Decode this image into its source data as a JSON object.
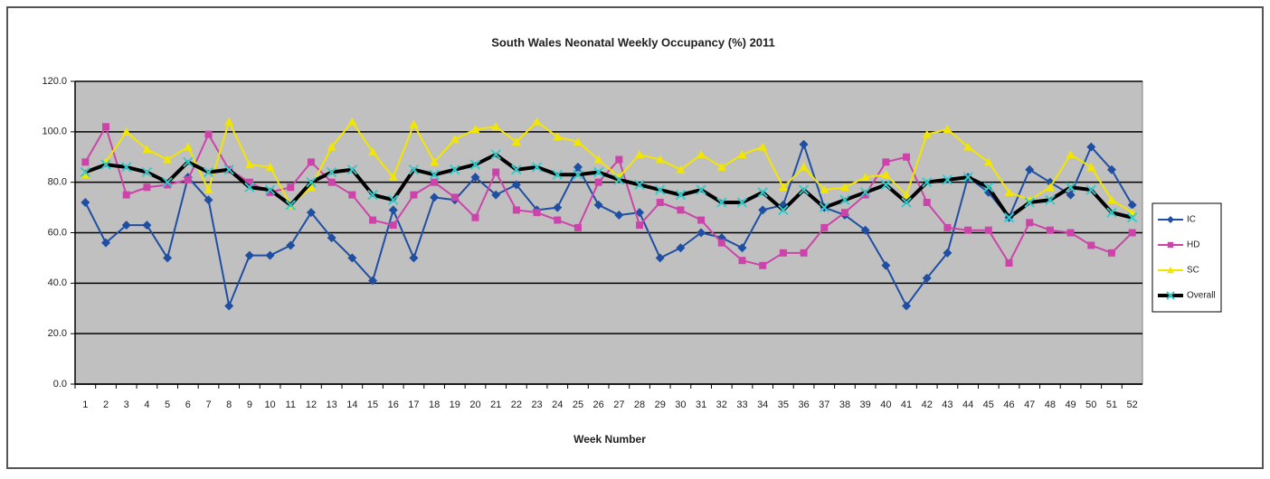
{
  "chart_data": {
    "type": "line",
    "title": "South Wales Neonatal Weekly Occupancy (%) 2011",
    "x_label": "Week Number",
    "categories": [
      "1",
      "2",
      "3",
      "4",
      "5",
      "6",
      "7",
      "8",
      "9",
      "10",
      "11",
      "12",
      "13",
      "14",
      "15",
      "16",
      "17",
      "18",
      "19",
      "20",
      "21",
      "22",
      "23",
      "24",
      "25",
      "26",
      "27",
      "28",
      "29",
      "30",
      "31",
      "32",
      "33",
      "34",
      "35",
      "36",
      "37",
      "38",
      "39",
      "40",
      "41",
      "42",
      "43",
      "44",
      "45",
      "46",
      "47",
      "48",
      "49",
      "50",
      "51",
      "52"
    ],
    "ylim": [
      0,
      120
    ],
    "yticks": [
      {
        "value": 0,
        "label": "0.0"
      },
      {
        "value": 20,
        "label": "20.0"
      },
      {
        "value": 40,
        "label": "40.0"
      },
      {
        "value": 60,
        "label": "60.0"
      },
      {
        "value": 80,
        "label": "80.0"
      },
      {
        "value": 100,
        "label": "100.0"
      },
      {
        "value": 120,
        "label": "120.0"
      }
    ],
    "grid": true,
    "legend": "right",
    "series": [
      {
        "name": "IC",
        "color": "#1f4fa3",
        "marker": "diamond",
        "marker_color": "#1f4fa3",
        "width": 2,
        "values": [
          72,
          56,
          63,
          63,
          50,
          82,
          73,
          31,
          51,
          51,
          55,
          68,
          58,
          50,
          41,
          69,
          50,
          74,
          73,
          82,
          75,
          79,
          69,
          70,
          86,
          71,
          67,
          68,
          50,
          54,
          60,
          58,
          54,
          69,
          71,
          95,
          70,
          67,
          61,
          47,
          31,
          42,
          52,
          82,
          76,
          66,
          85,
          80,
          75,
          94,
          85,
          71
        ]
      },
      {
        "name": "HD",
        "color": "#cc44aa",
        "marker": "square",
        "marker_color": "#cc44aa",
        "width": 2,
        "values": [
          88,
          102,
          75,
          78,
          79,
          81,
          99,
          85,
          80,
          76,
          78,
          88,
          80,
          75,
          65,
          63,
          75,
          80,
          74,
          66,
          84,
          69,
          68,
          65,
          62,
          80,
          89,
          63,
          72,
          69,
          65,
          56,
          49,
          47,
          52,
          52,
          62,
          68,
          75,
          88,
          90,
          72,
          62,
          61,
          61,
          48,
          64,
          61,
          60,
          55,
          52,
          60
        ]
      },
      {
        "name": "SC",
        "color": "#f2e600",
        "marker": "triangle",
        "marker_color": "#f2e600",
        "width": 2,
        "values": [
          83,
          88,
          100,
          93,
          89,
          94,
          77,
          104,
          87,
          86,
          71,
          78,
          94,
          104,
          92,
          82,
          103,
          88,
          97,
          101,
          102,
          96,
          104,
          98,
          96,
          89,
          82,
          91,
          89,
          85,
          91,
          86,
          91,
          94,
          78,
          86,
          77,
          78,
          82,
          83,
          75,
          99,
          101,
          94,
          88,
          76,
          73,
          78,
          91,
          86,
          73,
          68
        ]
      },
      {
        "name": "Overall",
        "color": "#000000",
        "marker": "x",
        "marker_color": "#33cccc",
        "width": 4,
        "values": [
          84,
          87,
          86,
          84,
          80,
          88,
          84,
          85,
          78,
          77,
          71,
          80,
          84,
          85,
          75,
          73,
          85,
          83,
          85,
          87,
          91,
          85,
          86,
          83,
          83,
          84,
          81,
          79,
          77,
          75,
          77,
          72,
          72,
          76,
          69,
          77,
          70,
          73,
          76,
          79,
          72,
          80,
          81,
          82,
          78,
          66,
          72,
          73,
          78,
          77,
          68,
          66
        ]
      }
    ]
  }
}
